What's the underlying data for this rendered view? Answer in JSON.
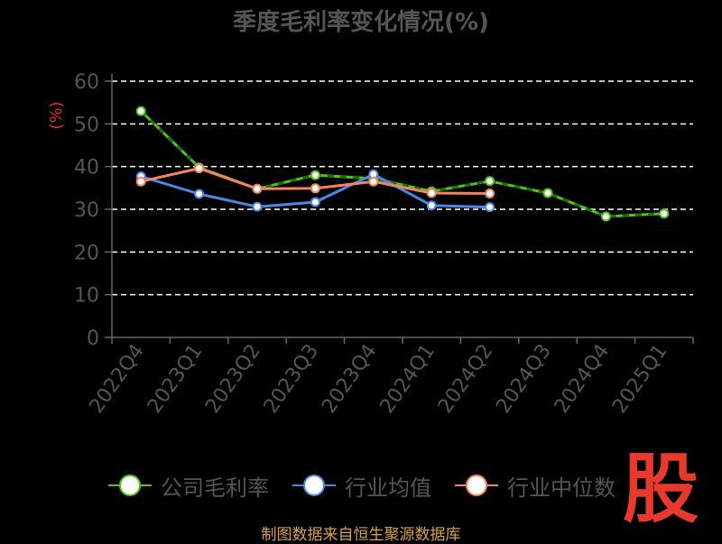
{
  "chart_data": {
    "type": "line",
    "title": "季度毛利率变化情况(%)",
    "ylabel": "(%)",
    "ylim": [
      0,
      60
    ],
    "yticks": [
      0,
      10,
      20,
      30,
      40,
      50,
      60
    ],
    "grid": true,
    "legend_position": "bottom",
    "categories": [
      "2022Q4",
      "2023Q1",
      "2023Q2",
      "2023Q3",
      "2023Q4",
      "2024Q1",
      "2024Q2",
      "2024Q3",
      "2024Q4",
      "2025Q1"
    ],
    "series": [
      {
        "name": "公司毛利率",
        "color": "#52c41a",
        "values": [
          53.0,
          39.8,
          34.8,
          38.0,
          37.2,
          34.2,
          36.6,
          33.8,
          28.3,
          29.0
        ]
      },
      {
        "name": "行业均值",
        "color": "#4a86e8",
        "values": [
          37.7,
          33.6,
          30.6,
          31.7,
          38.2,
          30.9,
          30.5,
          null,
          null,
          null
        ]
      },
      {
        "name": "行业中位数",
        "color": "#f4845f",
        "values": [
          36.5,
          39.6,
          34.8,
          34.9,
          36.5,
          33.8,
          33.7,
          null,
          null,
          null
        ]
      }
    ]
  },
  "footer": {
    "source": "制图数据来自恒生聚源数据库",
    "logo": "股"
  }
}
